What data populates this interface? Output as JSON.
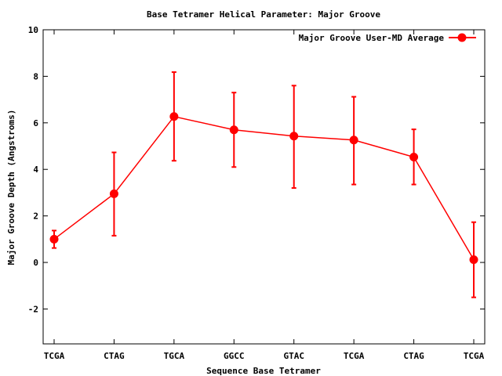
{
  "chart_data": {
    "type": "line",
    "title": "Base Tetramer Helical Parameter: Major Groove",
    "xlabel": "Sequence Base Tetramer",
    "ylabel": "Major Groove Depth (Angstroms)",
    "categories": [
      "TCGA",
      "CTAG",
      "TGCA",
      "GGCC",
      "GTAC",
      "TCGA",
      "CTAG",
      "TCGA"
    ],
    "ylim": [
      -3.5,
      10
    ],
    "yticks": [
      -2,
      0,
      2,
      4,
      6,
      8,
      10
    ],
    "yticklabels": [
      "-2",
      "0",
      "2",
      "4",
      "6",
      "8",
      "10"
    ],
    "grid": false,
    "legend_position": "top-right",
    "series": [
      {
        "name": "Major Groove User-MD Average",
        "color": "#ff0000",
        "values": [
          1.0,
          2.95,
          6.27,
          5.7,
          5.43,
          5.26,
          4.53,
          0.12
        ],
        "err_low": [
          0.62,
          1.15,
          4.37,
          4.1,
          3.2,
          3.35,
          3.35,
          -1.5
        ],
        "err_high": [
          1.37,
          4.73,
          8.18,
          7.3,
          7.6,
          7.12,
          5.72,
          1.73
        ]
      }
    ]
  }
}
